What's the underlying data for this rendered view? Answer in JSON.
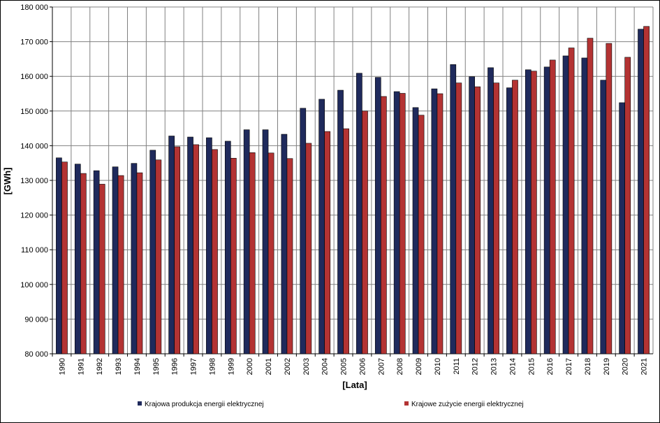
{
  "chart_data": {
    "type": "bar",
    "title": "",
    "xlabel": "[Lata]",
    "ylabel": "[GWh]",
    "ylim": [
      80000,
      180000
    ],
    "ytick_step": 10000,
    "yticks": [
      "80 000",
      "90 000",
      "100 000",
      "110 000",
      "120 000",
      "130 000",
      "140 000",
      "150 000",
      "160 000",
      "170 000",
      "180 000"
    ],
    "grid": true,
    "legend_position": "bottom",
    "categories": [
      "1990",
      "1991",
      "1992",
      "1993",
      "1994",
      "1995",
      "1996",
      "1997",
      "1998",
      "1999",
      "2000",
      "2001",
      "2002",
      "2003",
      "2004",
      "2005",
      "2006",
      "2007",
      "2008",
      "2009",
      "2010",
      "2011",
      "2012",
      "2013",
      "2014",
      "2015",
      "2016",
      "2017",
      "2018",
      "2019",
      "2020",
      "2021"
    ],
    "series": [
      {
        "name": "Krajowa produkcja energii elektrycznej",
        "color": "#1f2a5c",
        "values": [
          136500,
          134700,
          132800,
          133900,
          134900,
          138700,
          142800,
          142500,
          142300,
          141300,
          144600,
          144600,
          143300,
          150800,
          153400,
          156000,
          160900,
          159700,
          155600,
          151000,
          156400,
          163400,
          159900,
          162500,
          156700,
          161900,
          162700,
          165900,
          165300,
          158900,
          152400,
          173600
        ]
      },
      {
        "name": "Krajowe zużycie energii elektrycznej",
        "color": "#b33333",
        "values": [
          135300,
          132000,
          128900,
          131400,
          132200,
          135900,
          139700,
          140300,
          138900,
          136400,
          138000,
          137900,
          136300,
          140700,
          144100,
          144900,
          150000,
          154200,
          155100,
          148800,
          155000,
          158100,
          157000,
          158100,
          158900,
          161500,
          164700,
          168200,
          171000,
          169500,
          165500,
          174400
        ]
      }
    ]
  }
}
